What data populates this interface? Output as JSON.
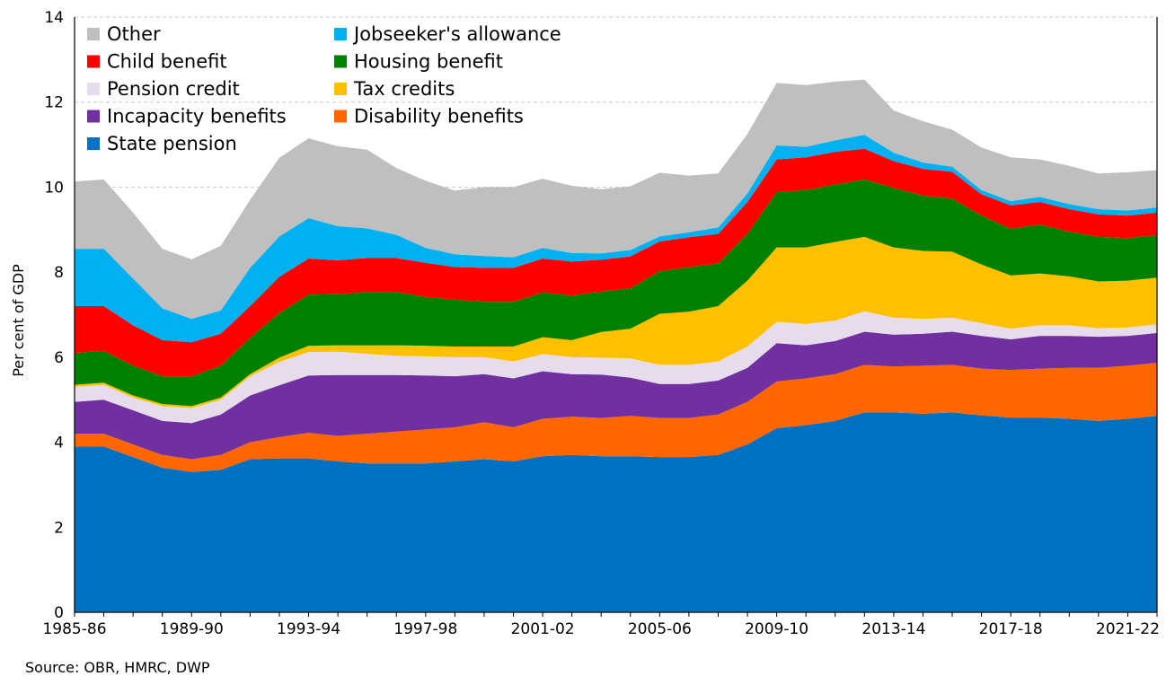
{
  "chart_data": {
    "type": "area",
    "stacked": true,
    "ylabel": "Per cent of GDP",
    "ylim": [
      0,
      14
    ],
    "yticks": [
      0,
      2,
      4,
      6,
      8,
      10,
      12,
      14
    ],
    "grid": "horizontal-dashed",
    "x": [
      "1985-86",
      "1986-87",
      "1987-88",
      "1988-89",
      "1989-90",
      "1990-91",
      "1991-92",
      "1992-93",
      "1993-94",
      "1994-95",
      "1995-96",
      "1996-97",
      "1997-98",
      "1998-99",
      "1999-00",
      "2000-01",
      "2001-02",
      "2002-03",
      "2003-04",
      "2004-05",
      "2005-06",
      "2006-07",
      "2007-08",
      "2008-09",
      "2009-10",
      "2010-11",
      "2011-12",
      "2012-13",
      "2013-14",
      "2014-15",
      "2015-16",
      "2016-17",
      "2017-18",
      "2018-19",
      "2019-20",
      "2020-21",
      "2021-22",
      "2022-23"
    ],
    "x_tick_labels": [
      "1985-86",
      "1989-90",
      "1993-94",
      "1997-98",
      "2001-02",
      "2005-06",
      "2009-10",
      "2013-14",
      "2017-18",
      "2021-22"
    ],
    "series": [
      {
        "name": "State pension",
        "color": "#0070C0",
        "values": [
          3.9,
          3.9,
          3.65,
          3.4,
          3.3,
          3.35,
          3.6,
          3.62,
          3.62,
          3.55,
          3.5,
          3.5,
          3.5,
          3.55,
          3.6,
          3.55,
          3.67,
          3.7,
          3.67,
          3.67,
          3.65,
          3.65,
          3.7,
          3.95,
          4.33,
          4.4,
          4.5,
          4.7,
          4.7,
          4.67,
          4.7,
          4.63,
          4.58,
          4.58,
          4.55,
          4.5,
          4.55,
          4.62
        ]
      },
      {
        "name": "Disability benefits",
        "color": "#FF6600",
        "values": [
          0.3,
          0.3,
          0.3,
          0.3,
          0.3,
          0.35,
          0.4,
          0.5,
          0.6,
          0.6,
          0.7,
          0.75,
          0.8,
          0.8,
          0.87,
          0.8,
          0.88,
          0.9,
          0.9,
          0.95,
          0.92,
          0.92,
          0.95,
          1.0,
          1.1,
          1.1,
          1.1,
          1.12,
          1.08,
          1.13,
          1.12,
          1.1,
          1.12,
          1.15,
          1.2,
          1.25,
          1.25,
          1.25
        ]
      },
      {
        "name": "Incapacity benefits",
        "color": "#7030A0",
        "values": [
          0.75,
          0.8,
          0.8,
          0.8,
          0.85,
          0.95,
          1.1,
          1.22,
          1.35,
          1.43,
          1.38,
          1.33,
          1.27,
          1.2,
          1.13,
          1.15,
          1.12,
          1.0,
          1.02,
          0.9,
          0.8,
          0.8,
          0.8,
          0.8,
          0.9,
          0.78,
          0.78,
          0.78,
          0.75,
          0.75,
          0.78,
          0.77,
          0.72,
          0.77,
          0.75,
          0.73,
          0.7,
          0.7
        ]
      },
      {
        "name": "Pension credit",
        "color": "#E6DCEC",
        "values": [
          0.35,
          0.35,
          0.3,
          0.35,
          0.35,
          0.35,
          0.45,
          0.55,
          0.55,
          0.55,
          0.5,
          0.45,
          0.45,
          0.45,
          0.4,
          0.4,
          0.4,
          0.4,
          0.4,
          0.45,
          0.45,
          0.45,
          0.45,
          0.5,
          0.5,
          0.5,
          0.48,
          0.48,
          0.4,
          0.35,
          0.33,
          0.3,
          0.25,
          0.25,
          0.25,
          0.2,
          0.2,
          0.2
        ]
      },
      {
        "name": "Tax credits",
        "color": "#FFC000",
        "values": [
          0.05,
          0.05,
          0.05,
          0.05,
          0.05,
          0.05,
          0.05,
          0.1,
          0.15,
          0.15,
          0.2,
          0.25,
          0.25,
          0.25,
          0.25,
          0.35,
          0.4,
          0.4,
          0.6,
          0.7,
          1.2,
          1.25,
          1.3,
          1.55,
          1.75,
          1.8,
          1.85,
          1.75,
          1.65,
          1.6,
          1.55,
          1.38,
          1.25,
          1.22,
          1.15,
          1.1,
          1.1,
          1.1
        ]
      },
      {
        "name": "Housing benefit",
        "color": "#008000",
        "values": [
          0.75,
          0.75,
          0.7,
          0.65,
          0.7,
          0.75,
          0.85,
          1.05,
          1.2,
          1.2,
          1.25,
          1.25,
          1.15,
          1.1,
          1.05,
          1.05,
          1.05,
          1.05,
          0.95,
          0.95,
          1.0,
          1.05,
          1.0,
          1.1,
          1.3,
          1.35,
          1.35,
          1.35,
          1.4,
          1.3,
          1.25,
          1.15,
          1.1,
          1.15,
          1.05,
          1.05,
          1.0,
          1.0
        ]
      },
      {
        "name": "Child benefit",
        "color": "#FF0000",
        "values": [
          1.1,
          1.05,
          0.95,
          0.85,
          0.8,
          0.75,
          0.75,
          0.85,
          0.85,
          0.8,
          0.8,
          0.8,
          0.8,
          0.77,
          0.8,
          0.8,
          0.8,
          0.8,
          0.75,
          0.75,
          0.7,
          0.7,
          0.7,
          0.75,
          0.77,
          0.77,
          0.77,
          0.72,
          0.63,
          0.63,
          0.63,
          0.5,
          0.55,
          0.53,
          0.53,
          0.53,
          0.53,
          0.53
        ]
      },
      {
        "name": "Jobseeker's allowance",
        "color": "#00B0F0",
        "values": [
          1.35,
          1.35,
          1.1,
          0.75,
          0.55,
          0.55,
          0.9,
          0.95,
          0.95,
          0.8,
          0.7,
          0.55,
          0.35,
          0.3,
          0.28,
          0.25,
          0.25,
          0.2,
          0.15,
          0.15,
          0.12,
          0.12,
          0.15,
          0.2,
          0.33,
          0.25,
          0.27,
          0.33,
          0.2,
          0.15,
          0.12,
          0.1,
          0.1,
          0.12,
          0.12,
          0.12,
          0.12,
          0.12
        ]
      },
      {
        "name": "Other",
        "color": "#BFBFBF",
        "values": [
          1.58,
          1.63,
          1.55,
          1.4,
          1.4,
          1.52,
          1.6,
          1.85,
          1.88,
          1.88,
          1.85,
          1.57,
          1.58,
          1.5,
          1.62,
          1.65,
          1.63,
          1.58,
          1.51,
          1.5,
          1.5,
          1.33,
          1.27,
          1.4,
          1.47,
          1.45,
          1.38,
          1.3,
          0.99,
          0.97,
          0.87,
          1.0,
          1.03,
          0.88,
          0.9,
          0.84,
          0.9,
          0.88
        ]
      }
    ],
    "legend": {
      "placement": "top-left",
      "columns": [
        [
          "Other",
          "Child benefit",
          "Pension credit",
          "Incapacity benefits",
          "State pension"
        ],
        [
          "Jobseeker's allowance",
          "Housing benefit",
          "Tax credits",
          "Disability benefits"
        ]
      ]
    },
    "source": "Source: OBR, HMRC, DWP"
  }
}
